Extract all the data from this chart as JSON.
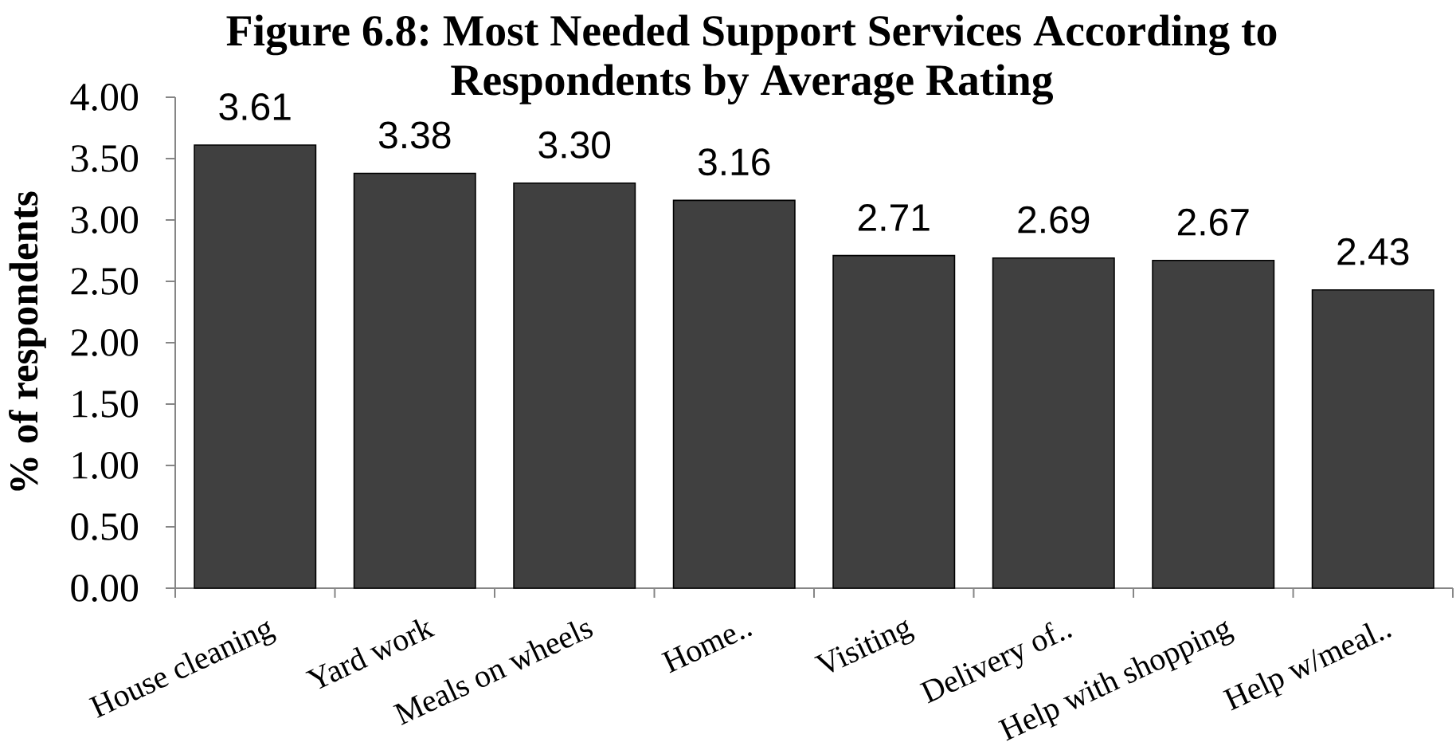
{
  "chart_data": {
    "type": "bar",
    "title": "Figure 6.8: Most Needed Support Services According to Respondents by Average Rating",
    "ylabel": "% of respondents",
    "categories": [
      "House cleaning",
      "Yard work",
      "Meals on wheels",
      "Home..",
      "Visiting",
      "Delivery of..",
      "Help with shopping",
      "Help w/meal.."
    ],
    "values": [
      3.61,
      3.38,
      3.3,
      3.16,
      2.71,
      2.69,
      2.67,
      2.43
    ],
    "value_labels": [
      "3.61",
      "3.38",
      "3.30",
      "3.16",
      "2.71",
      "2.69",
      "2.67",
      "2.43"
    ],
    "color": "#404040",
    "ylim": [
      0,
      4
    ],
    "yticks": [
      {
        "value": 0,
        "label": "0.00"
      },
      {
        "value": 0.5,
        "label": "0.50"
      },
      {
        "value": 1,
        "label": "1.00"
      },
      {
        "value": 1.5,
        "label": "1.50"
      },
      {
        "value": 2,
        "label": "2.00"
      },
      {
        "value": 2.5,
        "label": "2.50"
      },
      {
        "value": 3,
        "label": "3.00"
      },
      {
        "value": 3.5,
        "label": "3.50"
      },
      {
        "value": 4,
        "label": "4.00"
      }
    ]
  }
}
